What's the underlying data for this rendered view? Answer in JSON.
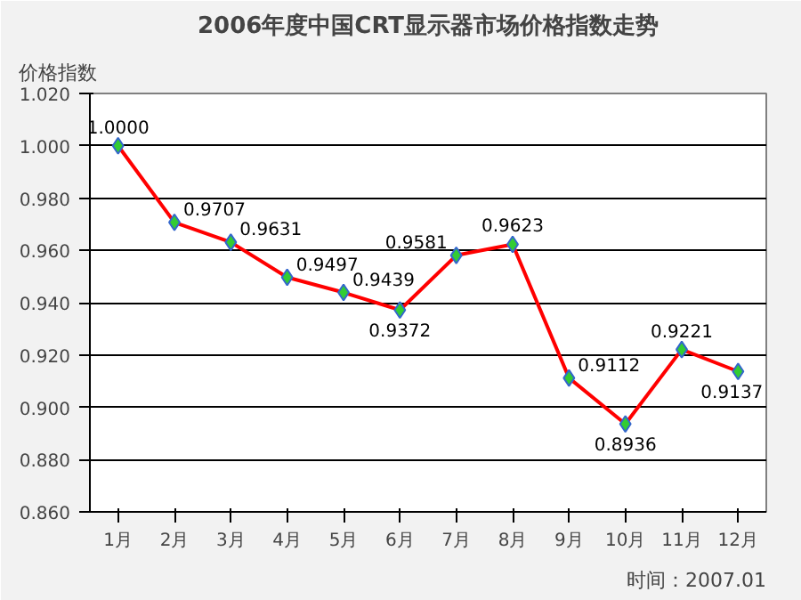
{
  "chart_data": {
    "type": "line",
    "title": "2006年度中国CRT显示器市场价格指数走势",
    "ylabel": "价格指数",
    "categories": [
      "1月",
      "2月",
      "3月",
      "4月",
      "5月",
      "6月",
      "7月",
      "8月",
      "9月",
      "10月",
      "11月",
      "12月"
    ],
    "series": [
      {
        "color": "#ff0000",
        "values": [
          1.0,
          0.9707,
          0.9631,
          0.9497,
          0.9439,
          0.9372,
          0.9581,
          0.9623,
          0.9112,
          0.8936,
          0.9221,
          0.9137
        ],
        "value_labels": [
          "1.0000",
          "0.9707",
          "0.9631",
          "0.9497",
          "0.9439",
          "0.9372",
          "0.9581",
          "0.9623",
          "0.9112",
          "0.8936",
          "0.9221",
          "0.9137"
        ]
      }
    ],
    "marker": "diamond",
    "grid": "y",
    "data_labels": true,
    "ylim": [
      0.86,
      1.02
    ],
    "yticks": [
      {
        "value": 0.86,
        "label": "0.860"
      },
      {
        "value": 0.88,
        "label": "0.880"
      },
      {
        "value": 0.9,
        "label": "0.900"
      },
      {
        "value": 0.92,
        "label": "0.920"
      },
      {
        "value": 0.94,
        "label": "0.940"
      },
      {
        "value": 0.96,
        "label": "0.960"
      },
      {
        "value": 0.98,
        "label": "0.980"
      },
      {
        "value": 1.0,
        "label": "1.000"
      },
      {
        "value": 1.02,
        "label": "1.020"
      }
    ],
    "annotations": [
      "时间：2007.01"
    ]
  }
}
